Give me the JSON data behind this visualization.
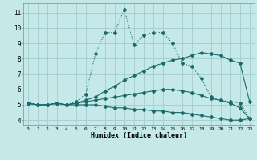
{
  "xlabel": "Humidex (Indice chaleur)",
  "xlim": [
    -0.5,
    23.5
  ],
  "ylim": [
    3.7,
    11.6
  ],
  "xticks": [
    0,
    1,
    2,
    3,
    4,
    5,
    6,
    7,
    8,
    9,
    10,
    11,
    12,
    13,
    14,
    15,
    16,
    17,
    18,
    19,
    20,
    21,
    22,
    23
  ],
  "yticks": [
    4,
    5,
    6,
    7,
    8,
    9,
    10,
    11
  ],
  "bg_color": "#c5e8e8",
  "grid_color": "#a8d0d0",
  "line_color": "#1a6b6b",
  "line1_x": [
    0,
    1,
    2,
    3,
    4,
    5,
    6,
    7,
    8,
    9,
    10,
    11,
    12,
    13,
    14,
    15,
    16,
    17,
    18,
    19,
    20,
    21,
    22,
    23
  ],
  "line1_y": [
    5.1,
    5.0,
    5.0,
    5.1,
    5.0,
    5.2,
    5.7,
    8.3,
    9.7,
    9.7,
    11.2,
    8.9,
    9.5,
    9.7,
    9.7,
    9.0,
    7.7,
    7.5,
    6.7,
    5.5,
    5.3,
    5.2,
    5.1,
    4.1
  ],
  "line2_x": [
    0,
    1,
    2,
    3,
    4,
    5,
    6,
    7,
    8,
    9,
    10,
    11,
    12,
    13,
    14,
    15,
    16,
    17,
    18,
    19,
    20,
    21,
    22,
    23
  ],
  "line2_y": [
    5.1,
    5.0,
    5.0,
    5.1,
    5.0,
    5.1,
    5.3,
    5.5,
    5.9,
    6.2,
    6.6,
    6.9,
    7.2,
    7.5,
    7.7,
    7.9,
    8.0,
    8.2,
    8.4,
    8.3,
    8.2,
    7.9,
    7.7,
    5.2
  ],
  "line3_x": [
    0,
    1,
    2,
    3,
    4,
    5,
    6,
    7,
    8,
    9,
    10,
    11,
    12,
    13,
    14,
    15,
    16,
    17,
    18,
    19,
    20,
    21,
    22,
    23
  ],
  "line3_y": [
    5.1,
    5.0,
    5.0,
    5.1,
    5.0,
    5.1,
    5.2,
    5.3,
    5.4,
    5.5,
    5.6,
    5.7,
    5.8,
    5.9,
    6.0,
    6.0,
    5.9,
    5.8,
    5.6,
    5.4,
    5.3,
    5.1,
    4.8,
    4.1
  ],
  "line4_x": [
    0,
    1,
    2,
    3,
    4,
    5,
    6,
    7,
    8,
    9,
    10,
    11,
    12,
    13,
    14,
    15,
    16,
    17,
    18,
    19,
    20,
    21,
    22,
    23
  ],
  "line4_y": [
    5.1,
    5.0,
    5.0,
    5.1,
    5.0,
    5.0,
    5.0,
    5.0,
    4.9,
    4.8,
    4.8,
    4.7,
    4.7,
    4.6,
    4.6,
    4.5,
    4.5,
    4.4,
    4.3,
    4.2,
    4.1,
    4.0,
    4.0,
    4.1
  ]
}
